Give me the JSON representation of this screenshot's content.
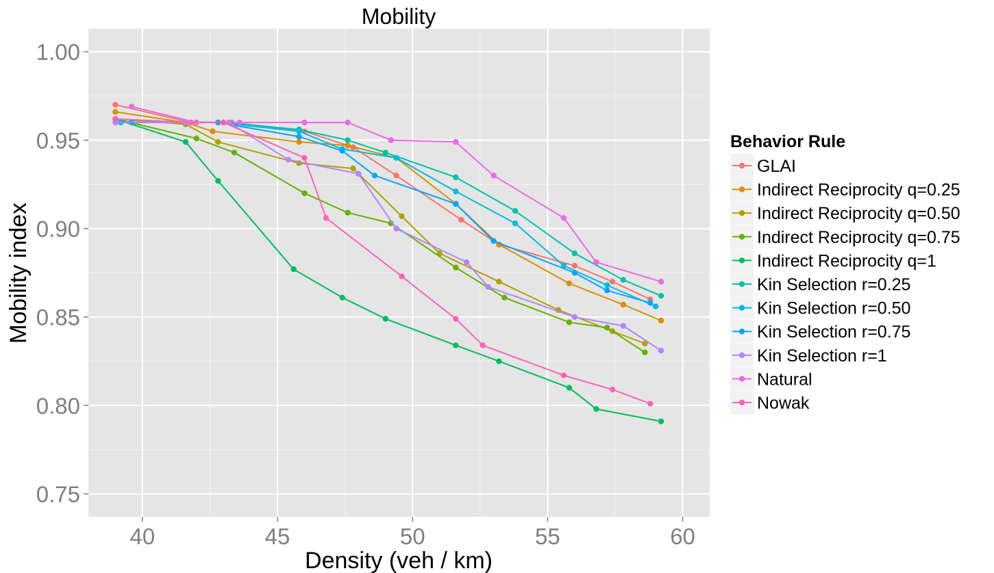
{
  "chart_data": {
    "type": "line",
    "title": "Mobility",
    "xlabel": "Density (veh / km)",
    "ylabel": "Mobility index",
    "xlim": [
      38,
      61
    ],
    "ylim": [
      0.737,
      1.013
    ],
    "x_ticks": [
      40,
      45,
      50,
      55,
      60
    ],
    "x_tick_labels": [
      "40",
      "45",
      "50",
      "55",
      "60"
    ],
    "y_ticks": [
      0.75,
      0.8,
      0.85,
      0.9,
      0.95,
      1.0
    ],
    "y_tick_labels": [
      "0.75",
      "0.80",
      "0.85",
      "0.90",
      "0.95",
      "1.00"
    ],
    "grid": true,
    "legend_title": "Behavior Rule",
    "legend_position": "right",
    "series": [
      {
        "name": "GLAI",
        "color": "#F8766D",
        "points": [
          [
            39.0,
            0.97
          ],
          [
            41.8,
            0.96
          ],
          [
            43.3,
            0.96
          ],
          [
            46.0,
            0.955
          ],
          [
            47.8,
            0.946
          ],
          [
            49.4,
            0.93
          ],
          [
            51.8,
            0.905
          ],
          [
            53.2,
            0.891
          ],
          [
            56.0,
            0.879
          ],
          [
            57.4,
            0.87
          ],
          [
            58.8,
            0.86
          ]
        ]
      },
      {
        "name": "Indirect Reciprocity q=0.25",
        "color": "#DB8E00",
        "points": [
          [
            39.0,
            0.966
          ],
          [
            41.6,
            0.96
          ],
          [
            42.6,
            0.955
          ],
          [
            45.8,
            0.949
          ],
          [
            47.6,
            0.947
          ],
          [
            49.4,
            0.94
          ],
          [
            51.6,
            0.914
          ],
          [
            53.2,
            0.891
          ],
          [
            55.8,
            0.869
          ],
          [
            57.8,
            0.857
          ],
          [
            59.2,
            0.848
          ]
        ]
      },
      {
        "name": "Indirect Reciprocity q=0.50",
        "color": "#AEA200",
        "points": [
          [
            39.0,
            0.962
          ],
          [
            41.6,
            0.959
          ],
          [
            42.8,
            0.949
          ],
          [
            45.8,
            0.937
          ],
          [
            47.8,
            0.934
          ],
          [
            49.6,
            0.907
          ],
          [
            51.0,
            0.886
          ],
          [
            53.2,
            0.87
          ],
          [
            55.4,
            0.854
          ],
          [
            57.4,
            0.842
          ],
          [
            58.6,
            0.835
          ]
        ]
      },
      {
        "name": "Indirect Reciprocity q=0.75",
        "color": "#64B200",
        "points": [
          [
            39.0,
            0.962
          ],
          [
            42.0,
            0.951
          ],
          [
            43.4,
            0.943
          ],
          [
            46.0,
            0.92
          ],
          [
            47.6,
            0.909
          ],
          [
            49.2,
            0.903
          ],
          [
            51.6,
            0.878
          ],
          [
            53.4,
            0.861
          ],
          [
            55.8,
            0.847
          ],
          [
            57.2,
            0.844
          ],
          [
            58.6,
            0.83
          ]
        ]
      },
      {
        "name": "Indirect Reciprocity q=1",
        "color": "#00BD5C",
        "points": [
          [
            39.0,
            0.962
          ],
          [
            41.6,
            0.949
          ],
          [
            42.8,
            0.927
          ],
          [
            45.6,
            0.877
          ],
          [
            47.4,
            0.861
          ],
          [
            49.0,
            0.849
          ],
          [
            51.6,
            0.834
          ],
          [
            53.2,
            0.825
          ],
          [
            55.8,
            0.81
          ],
          [
            56.8,
            0.798
          ],
          [
            59.2,
            0.791
          ]
        ]
      },
      {
        "name": "Kin Selection r=0.25",
        "color": "#00C1A7",
        "points": [
          [
            39.0,
            0.962
          ],
          [
            41.6,
            0.96
          ],
          [
            43.0,
            0.96
          ],
          [
            45.8,
            0.956
          ],
          [
            47.6,
            0.95
          ],
          [
            49.0,
            0.943
          ],
          [
            51.6,
            0.929
          ],
          [
            53.8,
            0.91
          ],
          [
            56.0,
            0.886
          ],
          [
            57.8,
            0.871
          ],
          [
            59.2,
            0.862
          ]
        ]
      },
      {
        "name": "Kin Selection r=0.50",
        "color": "#00BADE",
        "points": [
          [
            39.2,
            0.96
          ],
          [
            41.6,
            0.96
          ],
          [
            42.8,
            0.96
          ],
          [
            45.8,
            0.955
          ],
          [
            47.4,
            0.945
          ],
          [
            49.4,
            0.94
          ],
          [
            51.6,
            0.921
          ],
          [
            53.8,
            0.903
          ],
          [
            55.6,
            0.879
          ],
          [
            57.2,
            0.868
          ],
          [
            59.0,
            0.856
          ]
        ]
      },
      {
        "name": "Kin Selection r=0.75",
        "color": "#00A6FF",
        "points": [
          [
            39.6,
            0.96
          ],
          [
            41.6,
            0.96
          ],
          [
            42.8,
            0.96
          ],
          [
            45.8,
            0.952
          ],
          [
            47.4,
            0.944
          ],
          [
            48.6,
            0.93
          ],
          [
            51.6,
            0.914
          ],
          [
            53.0,
            0.893
          ],
          [
            56.0,
            0.875
          ],
          [
            57.2,
            0.865
          ],
          [
            58.8,
            0.858
          ]
        ]
      },
      {
        "name": "Kin Selection r=1",
        "color": "#B385FF",
        "points": [
          [
            39.0,
            0.96
          ],
          [
            41.6,
            0.96
          ],
          [
            43.2,
            0.96
          ],
          [
            45.4,
            0.939
          ],
          [
            48.0,
            0.931
          ],
          [
            49.4,
            0.9
          ],
          [
            52.0,
            0.881
          ],
          [
            52.8,
            0.867
          ],
          [
            56.0,
            0.85
          ],
          [
            57.8,
            0.845
          ],
          [
            59.2,
            0.831
          ]
        ]
      },
      {
        "name": "Natural",
        "color": "#EF67EB",
        "points": [
          [
            39.6,
            0.969
          ],
          [
            42.0,
            0.96
          ],
          [
            43.6,
            0.96
          ],
          [
            46.0,
            0.96
          ],
          [
            47.6,
            0.96
          ],
          [
            49.2,
            0.95
          ],
          [
            51.6,
            0.949
          ],
          [
            53.0,
            0.93
          ],
          [
            55.6,
            0.906
          ],
          [
            56.8,
            0.881
          ],
          [
            59.2,
            0.87
          ]
        ]
      },
      {
        "name": "Nowak",
        "color": "#FF63B6",
        "points": [
          [
            39.0,
            0.962
          ],
          [
            41.8,
            0.96
          ],
          [
            43.0,
            0.96
          ],
          [
            46.0,
            0.94
          ],
          [
            46.8,
            0.906
          ],
          [
            49.6,
            0.873
          ],
          [
            51.6,
            0.849
          ],
          [
            52.6,
            0.834
          ],
          [
            55.6,
            0.817
          ],
          [
            57.4,
            0.809
          ],
          [
            58.8,
            0.801
          ]
        ]
      }
    ]
  }
}
